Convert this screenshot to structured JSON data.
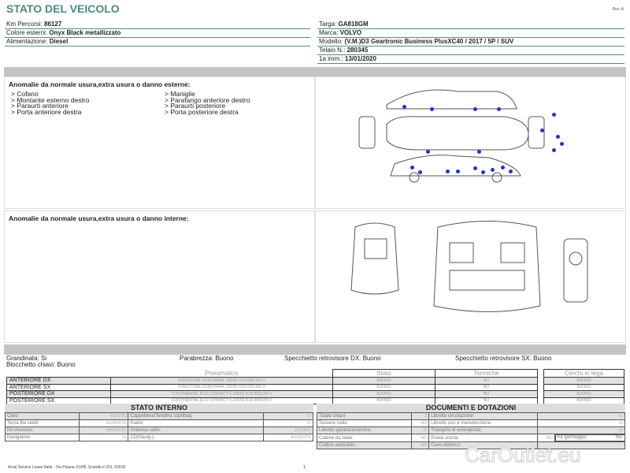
{
  "header": {
    "title": "STATO DEL VEICOLO",
    "rev": "Rev. A"
  },
  "vehicle_left": [
    {
      "label": "Km Percorsi:",
      "value": "86127"
    },
    {
      "label": "Colore esterni:",
      "value": "Onyx Black metallizzato"
    },
    {
      "label": "Alimentazione:",
      "value": "Diesel"
    }
  ],
  "vehicle_right": [
    {
      "label": "Targa:",
      "value": "GA818GM"
    },
    {
      "label": "Marca:",
      "value": "VOLVO"
    },
    {
      "label": "Modello:",
      "value": "(V.M.)D3 Geartronic Business PlusXC40 / 2017 / 5P / SUV"
    },
    {
      "label": "Telaio N.:",
      "value": "280345"
    },
    {
      "label": "1a imm.:",
      "value": "13/01/2020"
    }
  ],
  "exterior": {
    "title": "Anomalie da normale usura,extra usura o danno esterne:",
    "items": [
      "> Cofano",
      "> Maniglie",
      "> Montante esterno destro",
      "> Parafango anteriore destro",
      "> Paraurti anteriore",
      "> Paraurti posteriore",
      "> Porta anteriore destra",
      "> Porta posteriore destra"
    ],
    "damage_marker_color": "#2233cc"
  },
  "interior": {
    "title": "Anomalie da normale usura,extra usura o danno interne:"
  },
  "conditions": {
    "grandinata": "Grandinata: Si",
    "parabrezza": "Parabrezza: Buono",
    "specchietto_dx": "Specchietto retrovisore DX: Buono",
    "specchietto_sx": "Specchietto retrovisore SX: Buono",
    "blocchetto": "Blocchetto chiavi: Buono"
  },
  "tyres": {
    "headers": [
      "Pneumatico",
      "Stato",
      "Termiche",
      "Cerchi in lega"
    ],
    "rows": [
      {
        "pos": "ANTERIORE DX",
        "tyre": "FIRESTONE ROADHAWK 235/55 R18 000/100 V",
        "stato": "BUONO",
        "termiche": "NO",
        "cerchi": "BUONO"
      },
      {
        "pos": "ANTERIORE SX",
        "tyre": "FIRESTONE ROADHAWK 235/55 R18 000/100 V",
        "stato": "BUONO",
        "termiche": "NO",
        "cerchi": "BUONO"
      },
      {
        "pos": "POSTERIORE DX",
        "tyre": "CONTINENTAL ECO CONTACT 6 235/55 R18 000/100 V",
        "stato": "BUONO",
        "termiche": "NO",
        "cerchi": "BUONO"
      },
      {
        "pos": "POSTERIORE SX",
        "tyre": "CONTINENTAL ECO CONTACT 6 235/55 R18 000/100 V",
        "stato": "BUONO",
        "termiche": "NO",
        "cerchi": "BUONO"
      }
    ]
  },
  "stato_interno": {
    "title": "STATO INTERNO",
    "rows": [
      [
        "Cielo:",
        "BUONO",
        "Cappelliera/Tendina copribag:",
        "SI"
      ],
      [
        "Terza fila sedili:",
        "ASSENTE",
        "Radio:",
        "SI"
      ],
      [
        "Kit vivavoce:",
        "ASSENTE",
        "Antenna radio:",
        "BUONO"
      ],
      [
        "Navigatore:",
        "SI",
        "CD(Navig.):",
        "ASSENTE"
      ]
    ]
  },
  "documenti": {
    "title": "DOCUMENTI E DOTAZIONI",
    "rows": [
      [
        "Totale chiavi:",
        "2",
        "Libretto circolazione:",
        "SI"
      ],
      [
        "Tessere code:",
        "NO",
        "Libretto uso e manutenzione:",
        "SI"
      ],
      [
        "Libretto garanzia/service:",
        "SI",
        "Triangolo di emergenza:",
        "SI"
      ],
      [
        "Catene da neve:",
        "NO",
        "Ruota scorta:",
        "NO"
      ],
      [
        "Codice autoradio:",
        "NO",
        "Cavo elettrico:",
        ""
      ]
    ],
    "kit_label": "Kit gonfiaggio:",
    "kit_value": "NO"
  },
  "footer": {
    "address": "Arval Service Lease Italia - Via Pisana 314/B, Scandicci (FI), 50018",
    "page": "1",
    "watermark": "CarOutlet.eu"
  }
}
